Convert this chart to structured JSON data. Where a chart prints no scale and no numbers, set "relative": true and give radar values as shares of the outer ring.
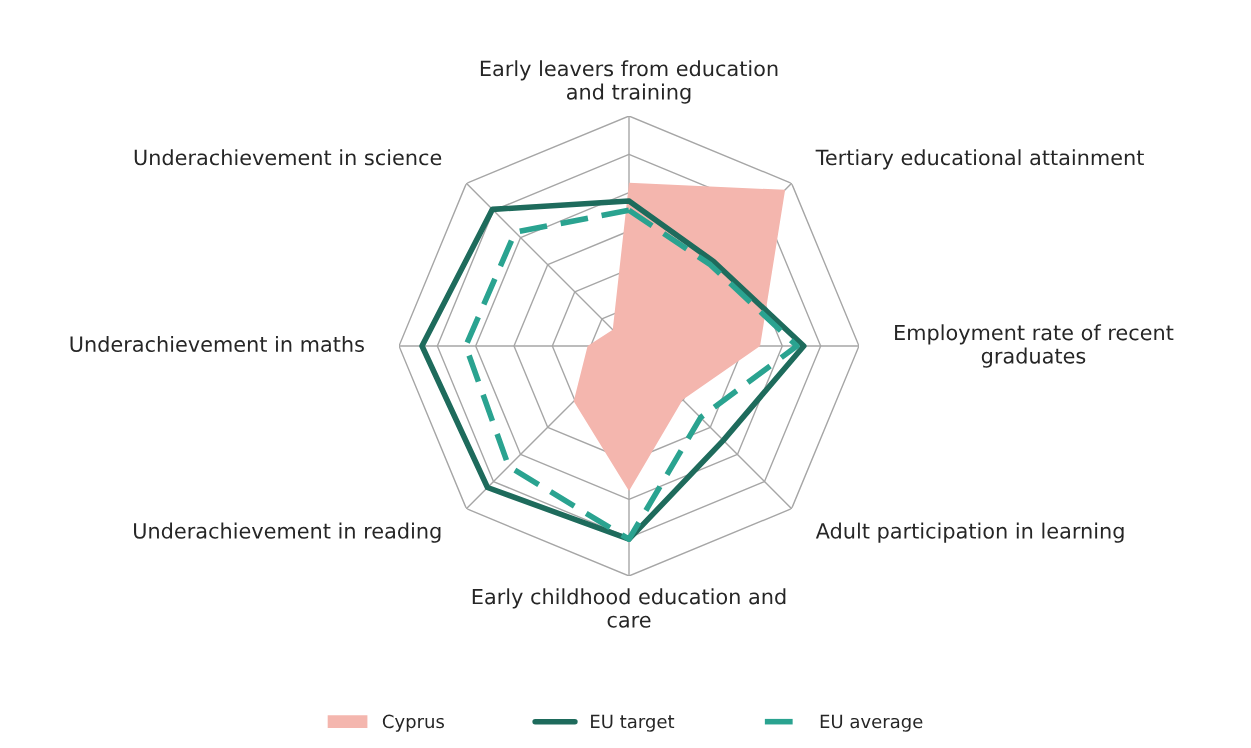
{
  "chart_data": {
    "type": "radar",
    "relative": true,
    "grid": true,
    "legend": "bottom",
    "categories": [
      "Early leavers from education\nand training",
      "Tertiary educational attainment",
      "Employment rate of recent\ngraduates",
      "Adult participation in learning",
      "Early childhood education and\ncare",
      "Underachievement in reading",
      "Underachievement in maths",
      "Underachievement in science"
    ],
    "series": [
      {
        "name": "Cyprus",
        "type": "area",
        "color": "#f4b6ae",
        "values": [
          0.71,
          0.96,
          0.57,
          0.33,
          0.63,
          0.34,
          0.18,
          0.1
        ]
      },
      {
        "name": "EU target",
        "color": "#1e6b5c",
        "values": [
          0.63,
          0.52,
          0.76,
          0.58,
          0.84,
          0.87,
          0.9,
          0.84
        ]
      },
      {
        "name": "EU average",
        "line_style": "dashed",
        "color": "#2aa390",
        "values": [
          0.59,
          0.5,
          0.73,
          0.44,
          0.84,
          0.74,
          0.71,
          0.7
        ]
      }
    ]
  }
}
